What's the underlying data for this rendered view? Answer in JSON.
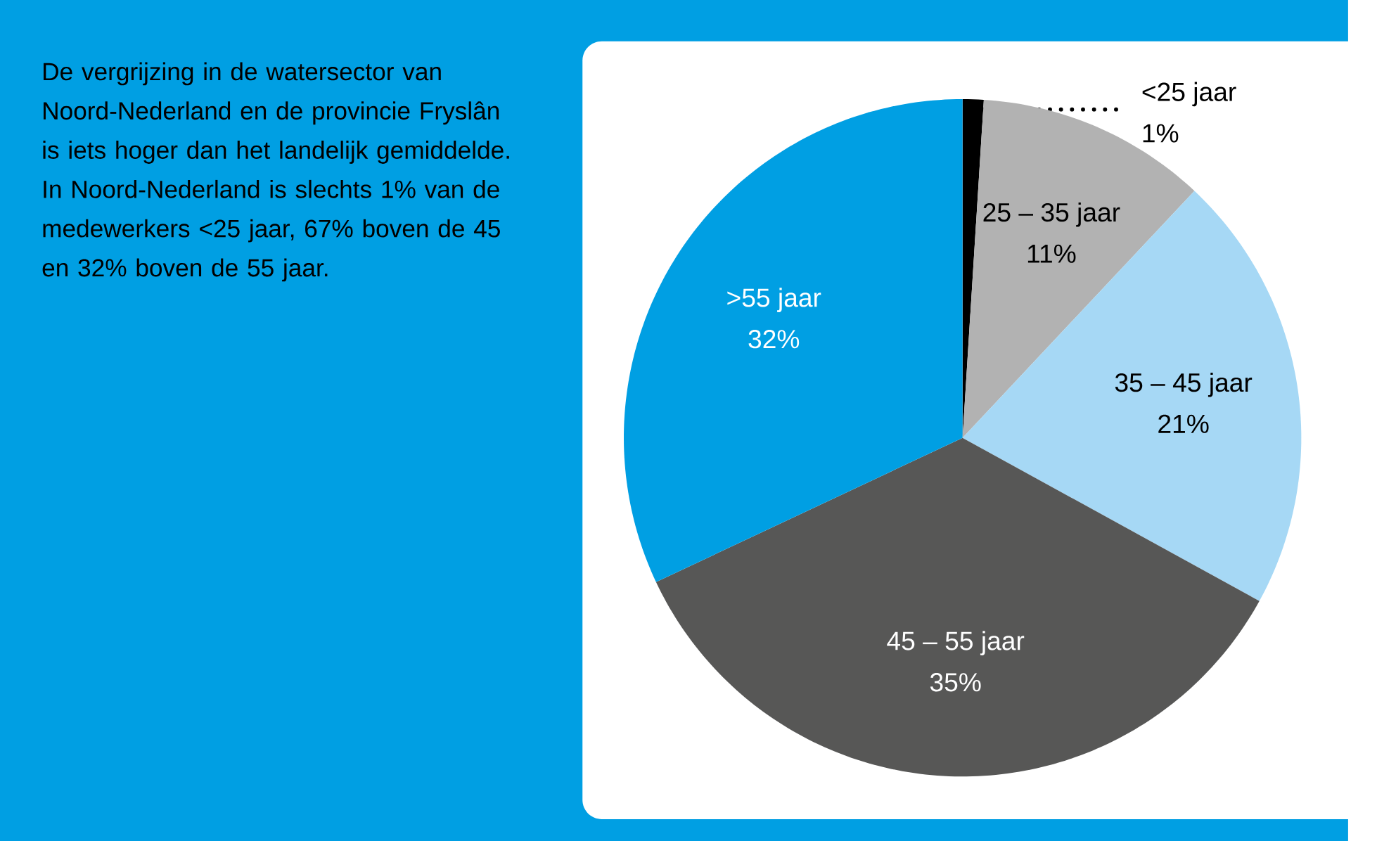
{
  "chart_data": {
    "type": "pie",
    "categories": [
      "<25 jaar",
      "25 – 35 jaar",
      "35 – 45 jaar",
      "45 – 55 jaar",
      ">55 jaar"
    ],
    "values": [
      1,
      11,
      21,
      35,
      32
    ],
    "value_labels": [
      "1%",
      "11%",
      "21%",
      "35%",
      "32%"
    ],
    "colors": [
      "#000000",
      "#b2b2b2",
      "#a6d8f5",
      "#575756",
      "#009fe3"
    ],
    "annotations": [
      "De vergrijzing in de watersector van Noord-Nederland en de provincie Fryslân is iets hoger dan het landelijk gemiddelde. In Noord-Nederland is slechts 1% van de medewerkers <25 jaar, 67% boven de 45 en 32% boven de 55 jaar."
    ]
  }
}
